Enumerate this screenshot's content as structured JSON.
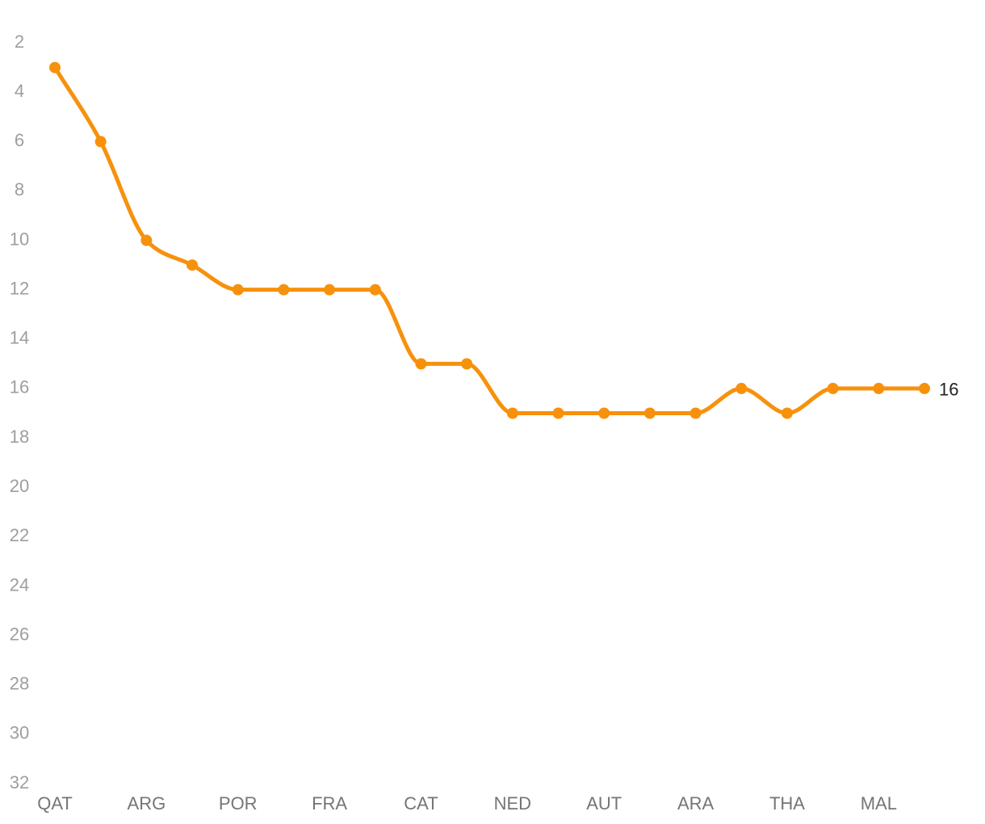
{
  "chart_data": {
    "type": "line",
    "categories": [
      "QAT",
      null,
      "ARG",
      null,
      "POR",
      null,
      "FRA",
      null,
      "CAT",
      null,
      "NED",
      null,
      "AUT",
      null,
      "ARA",
      null,
      "THA",
      null,
      "MAL",
      null
    ],
    "values": [
      3,
      6,
      10,
      11,
      12,
      12,
      12,
      12,
      15,
      15,
      17,
      17,
      17,
      17,
      17,
      16,
      17,
      16,
      16,
      16
    ],
    "color": "#f7910c",
    "ylim": [
      2,
      32
    ],
    "yticks": [
      2,
      4,
      6,
      8,
      10,
      12,
      14,
      16,
      18,
      20,
      22,
      24,
      26,
      28,
      30,
      32
    ],
    "y_inverted": true,
    "curve": "smooth",
    "grid": false
  }
}
